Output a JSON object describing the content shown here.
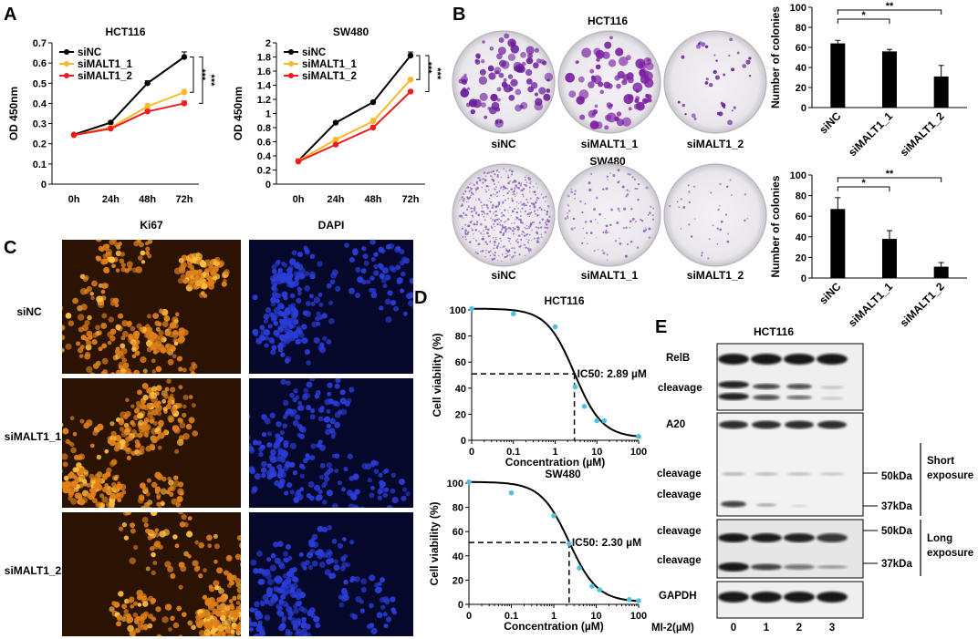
{
  "panels": {
    "A": {
      "label": "A",
      "chart_data": [
        {
          "type": "line",
          "title": "HCT116",
          "ylabel": "OD 450nm",
          "categories": [
            "0h",
            "24h",
            "48h",
            "72h"
          ],
          "ylim": [
            0,
            0.7
          ],
          "yticks": [
            "0",
            "0.1",
            "0.2",
            "0.3",
            "0.4",
            "0.5",
            "0.6",
            "0.7"
          ],
          "series": [
            {
              "name": "siNC",
              "color": "#000000",
              "values": [
                0.245,
                0.305,
                0.5,
                0.63
              ],
              "err": [
                0.005,
                0.006,
                0.012,
                0.025
              ]
            },
            {
              "name": "siMALT1_1",
              "color": "#f7b928",
              "values": [
                0.243,
                0.28,
                0.385,
                0.455
              ],
              "err": [
                0.005,
                0.006,
                0.015,
                0.015
              ]
            },
            {
              "name": "siMALT1_2",
              "color": "#ee1c1c",
              "values": [
                0.243,
                0.275,
                0.36,
                0.4
              ],
              "err": [
                0.005,
                0.006,
                0.01,
                0.012
              ]
            }
          ],
          "significance": [
            "***",
            "***"
          ]
        },
        {
          "type": "line",
          "title": "SW480",
          "ylabel": "OD 450nm",
          "categories": [
            "0h",
            "24h",
            "48h",
            "72h"
          ],
          "ylim": [
            0,
            2
          ],
          "yticks": [
            "0",
            "0.2",
            "0.4",
            "0.6",
            "0.8",
            "1",
            "1.2",
            "1.4",
            "1.6",
            "1.8",
            "2"
          ],
          "series": [
            {
              "name": "siNC",
              "color": "#000000",
              "values": [
                0.33,
                0.87,
                1.16,
                1.82
              ],
              "err": [
                0.03,
                0.02,
                0.02,
                0.05
              ]
            },
            {
              "name": "siMALT1_1",
              "color": "#f7b928",
              "values": [
                0.33,
                0.63,
                0.89,
                1.48
              ],
              "err": [
                0.03,
                0.03,
                0.04,
                0.02
              ]
            },
            {
              "name": "siMALT1_2",
              "color": "#ee1c1c",
              "values": [
                0.32,
                0.56,
                0.8,
                1.31
              ],
              "err": [
                0.03,
                0.02,
                0.03,
                0.02
              ]
            }
          ],
          "significance": [
            "***",
            "***"
          ]
        }
      ]
    },
    "B": {
      "label": "B",
      "plates_top_title": "HCT116",
      "plates_bottom_title": "SW480",
      "plate_labels": [
        "siNC",
        "siMALT1_1",
        "siMALT1_2"
      ],
      "chart_data": [
        {
          "type": "bar",
          "ylabel": "Number of colonies",
          "categories": [
            "siNC",
            "siMALT1_1",
            "siMALT1_2"
          ],
          "values": [
            64,
            56,
            31
          ],
          "err": [
            3,
            2,
            11
          ],
          "ylim": [
            0,
            100
          ],
          "yticks": [
            "0",
            "20",
            "40",
            "60",
            "80",
            "100"
          ],
          "significance": [
            "*",
            "**"
          ]
        },
        {
          "type": "bar",
          "ylabel": "Number of colonies",
          "categories": [
            "siNC",
            "siMALT1_1",
            "siMALT1_2"
          ],
          "values": [
            67,
            38,
            11
          ],
          "err": [
            11,
            8,
            4
          ],
          "ylim": [
            0,
            100
          ],
          "yticks": [
            "0",
            "20",
            "40",
            "60",
            "80",
            "100"
          ],
          "significance": [
            "*",
            "**"
          ]
        }
      ]
    },
    "C": {
      "label": "C",
      "column_titles": [
        "Ki67",
        "DAPI"
      ],
      "row_labels": [
        "siNC",
        "siMALT1_1",
        "siMALT1_2"
      ],
      "colors": {
        "ki67": "#e0801a",
        "dapi": "#2a3dd8"
      }
    },
    "D": {
      "label": "D",
      "chart_data": [
        {
          "type": "scatter",
          "title": "HCT116",
          "xlabel": "Concentration (µM)",
          "ylabel": "Cell viability (%)",
          "xscale": "log",
          "xticks": [
            "0",
            "0.1",
            "1",
            "10",
            "100"
          ],
          "ylim": [
            0,
            100
          ],
          "yticks": [
            "0",
            "20",
            "40",
            "60",
            "80",
            "100"
          ],
          "x": [
            0.01,
            0.1,
            1,
            3,
            5,
            10,
            15,
            100
          ],
          "y": [
            101,
            97,
            87,
            41,
            26,
            15,
            15,
            3
          ],
          "ic50": 2.89,
          "ic50_label": "IC50: 2.89 µM",
          "point_color": "#4fc3de"
        },
        {
          "type": "scatter",
          "title": "SW480",
          "xlabel": "Concentration (µM)",
          "ylabel": "Cell viability (%)",
          "xscale": "log",
          "xticks": [
            "0",
            "0.1",
            "1",
            "10",
            "100"
          ],
          "ylim": [
            0,
            100
          ],
          "yticks": [
            "0",
            "20",
            "40",
            "60",
            "80",
            "100"
          ],
          "x": [
            0.01,
            0.1,
            1,
            2.3,
            4,
            8,
            12,
            60,
            100
          ],
          "y": [
            101,
            92,
            73,
            50,
            30,
            15,
            12,
            4,
            3
          ],
          "ic50": 2.3,
          "ic50_label": "IC50: 2.30 µM",
          "point_color": "#4fc3de"
        }
      ]
    },
    "E": {
      "label": "E",
      "title": "HCT116",
      "bands": [
        "RelB",
        "cleavage",
        "A20",
        "cleavage",
        "cleavage",
        "cleavage",
        "cleavage",
        "GAPDH"
      ],
      "markers": [
        "50kDa",
        "37kDa",
        "50kDa",
        "37kDa"
      ],
      "exposures": [
        "Short\nexposure",
        "Long\nexposure"
      ],
      "exposure_lines": [
        [
          "Short",
          "exposure"
        ],
        [
          "Long",
          "exposure"
        ]
      ],
      "treatment_label": "MI-2(µM)",
      "lanes": [
        "0",
        "1",
        "2",
        "3"
      ]
    }
  }
}
